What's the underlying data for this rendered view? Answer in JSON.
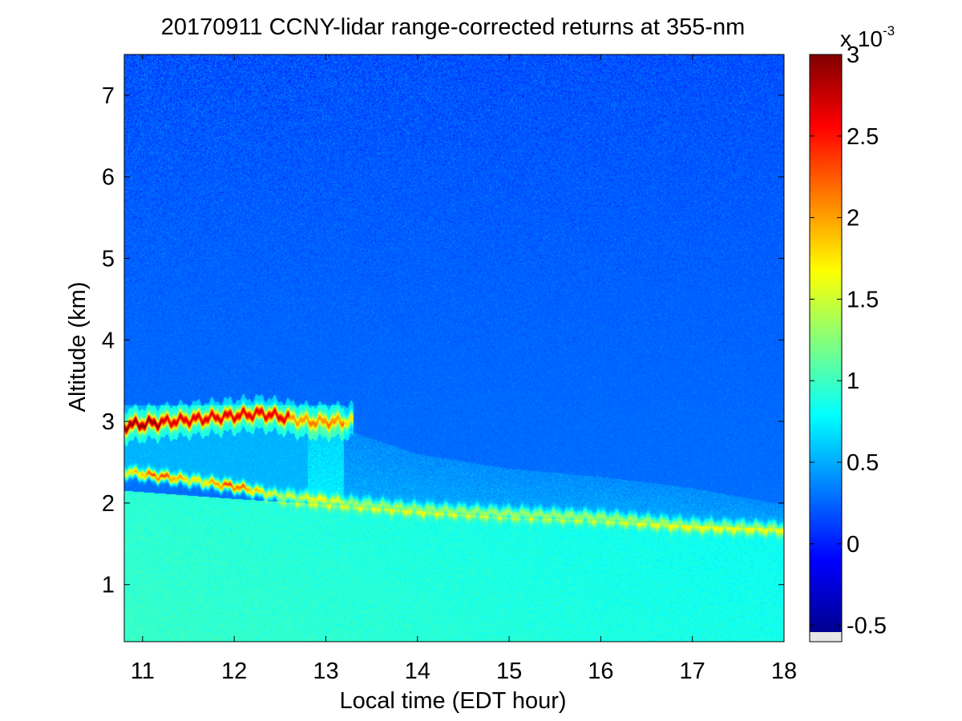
{
  "chart_data": {
    "type": "heatmap",
    "title": "20170911 CCNY-lidar range-corrected returns at 355-nm",
    "xlabel": "Local time (EDT hour)",
    "ylabel": "Altitude (km)",
    "xlim": [
      10.8,
      18.0
    ],
    "ylim": [
      0.3,
      7.5
    ],
    "x_ticks": [
      11,
      12,
      13,
      14,
      15,
      16,
      17,
      18
    ],
    "y_ticks": [
      1,
      2,
      3,
      4,
      5,
      6,
      7
    ],
    "colorbar": {
      "colormap": "jet",
      "range": [
        -0.6,
        3.0
      ],
      "ticks": [
        -0.5,
        0,
        0.5,
        1,
        1.5,
        2,
        2.5,
        3
      ],
      "tick_labels": [
        "-0.5",
        "0",
        "0.5",
        "1",
        "1.5",
        "2",
        "2.5",
        "3"
      ],
      "exponent_base": "x 10",
      "exponent_power": "-3",
      "nan_color": "#e6e6e6"
    },
    "features": {
      "boundary_layer_top_km": [
        {
          "t": 10.8,
          "z": 2.15
        },
        {
          "t": 12.0,
          "z": 2.05
        },
        {
          "t": 13.0,
          "z": 1.98
        },
        {
          "t": 14.0,
          "z": 1.9
        },
        {
          "t": 15.0,
          "z": 1.82
        },
        {
          "t": 16.0,
          "z": 1.78
        },
        {
          "t": 17.0,
          "z": 1.72
        },
        {
          "t": 18.0,
          "z": 1.68
        }
      ],
      "lower_aerosol_layer_km": [
        {
          "t": 10.8,
          "z": 2.38
        },
        {
          "t": 11.5,
          "z": 2.28
        },
        {
          "t": 12.0,
          "z": 2.2
        },
        {
          "t": 12.5,
          "z": 2.08
        },
        {
          "t": 13.0,
          "z": 2.02
        },
        {
          "t": 14.0,
          "z": 1.92
        },
        {
          "t": 15.0,
          "z": 1.87
        },
        {
          "t": 16.0,
          "z": 1.82
        },
        {
          "t": 17.0,
          "z": 1.72
        },
        {
          "t": 18.0,
          "z": 1.68
        }
      ],
      "upper_aerosol_layer_km": [
        {
          "t": 10.8,
          "z": 2.95
        },
        {
          "t": 11.3,
          "z": 3.0
        },
        {
          "t": 11.8,
          "z": 3.05
        },
        {
          "t": 12.3,
          "z": 3.1
        },
        {
          "t": 12.8,
          "z": 3.0
        },
        {
          "t": 13.2,
          "z": 3.0
        }
      ],
      "residual_layer_top_km": [
        {
          "t": 13.2,
          "z": 2.9
        },
        {
          "t": 14.0,
          "z": 2.6
        },
        {
          "t": 15.0,
          "z": 2.42
        },
        {
          "t": 16.0,
          "z": 2.32
        },
        {
          "t": 17.0,
          "z": 2.18
        },
        {
          "t": 18.0,
          "z": 1.98
        }
      ]
    }
  }
}
